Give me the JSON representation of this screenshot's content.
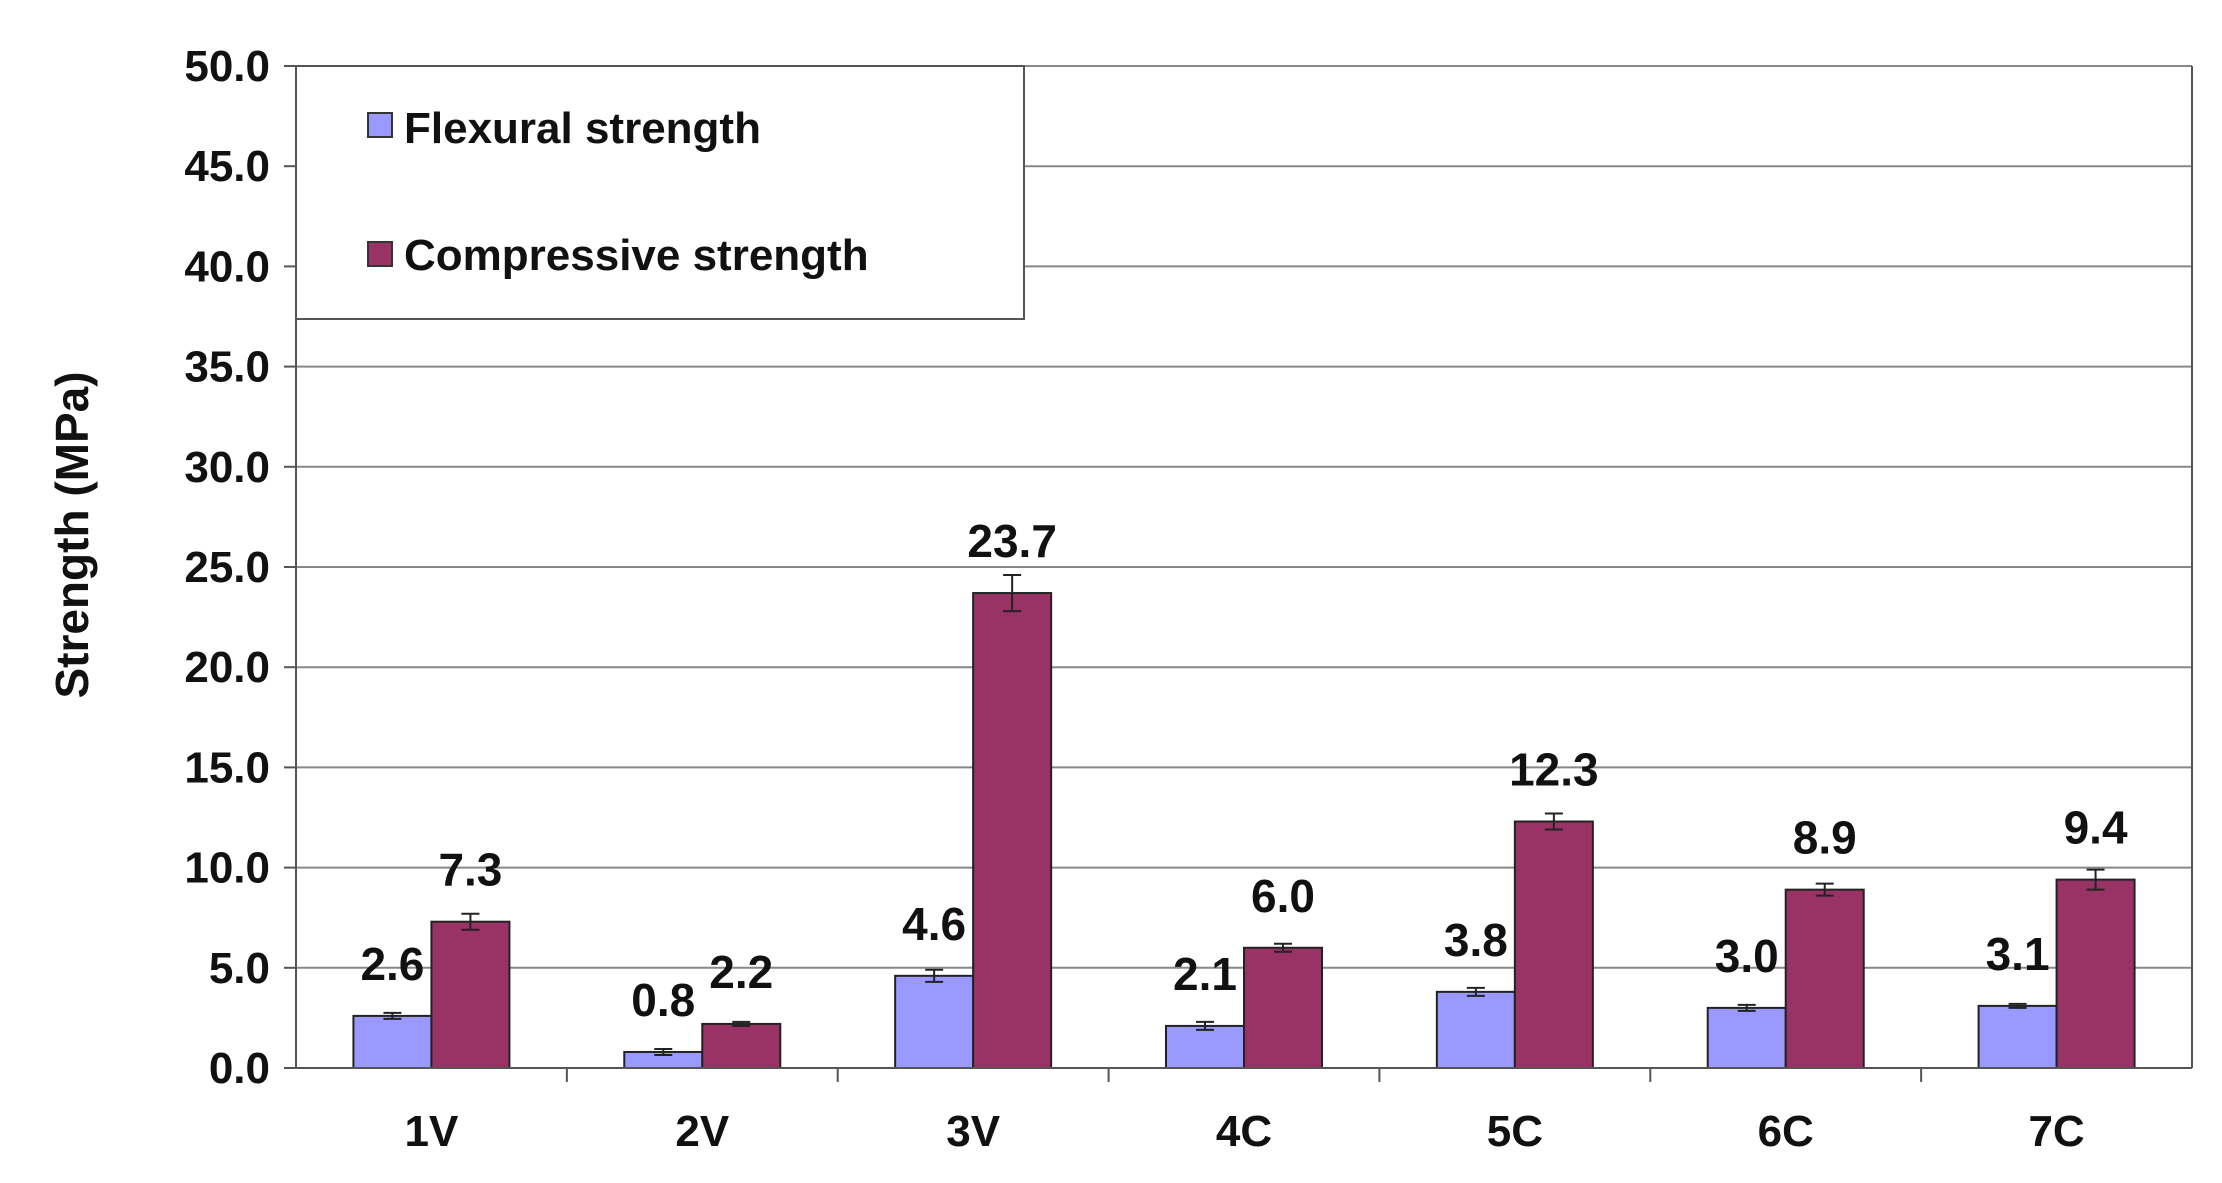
{
  "chart_data": {
    "type": "bar",
    "title": "",
    "xlabel": "",
    "ylabel": "Strength (MPa)",
    "ylim": [
      0,
      50
    ],
    "ytick_step": 5,
    "ytick_labels": [
      "0.0",
      "5.0",
      "10.0",
      "15.0",
      "20.0",
      "25.0",
      "30.0",
      "35.0",
      "40.0",
      "45.0",
      "50.0"
    ],
    "grid": true,
    "legend_position": "top-left",
    "categories": [
      "1V",
      "2V",
      "3V",
      "4C",
      "5C",
      "6C",
      "7C"
    ],
    "series": [
      {
        "name": "Flexural strength",
        "color": "#9999ff",
        "values": [
          2.6,
          0.8,
          4.6,
          2.1,
          3.8,
          3.0,
          3.1
        ],
        "labels": [
          "2.6",
          "0.8",
          "4.6",
          "2.1",
          "3.8",
          "3.0",
          "3.1"
        ],
        "errors": [
          0.15,
          0.15,
          0.3,
          0.2,
          0.2,
          0.15,
          0.1
        ]
      },
      {
        "name": "Compressive strength",
        "color": "#993366",
        "values": [
          7.3,
          2.2,
          23.7,
          6.0,
          12.3,
          8.9,
          9.4
        ],
        "labels": [
          "7.3",
          "2.2",
          "23.7",
          "6.0",
          "12.3",
          "8.9",
          "9.4"
        ],
        "errors": [
          0.4,
          0.1,
          0.9,
          0.2,
          0.4,
          0.3,
          0.5
        ]
      }
    ]
  }
}
